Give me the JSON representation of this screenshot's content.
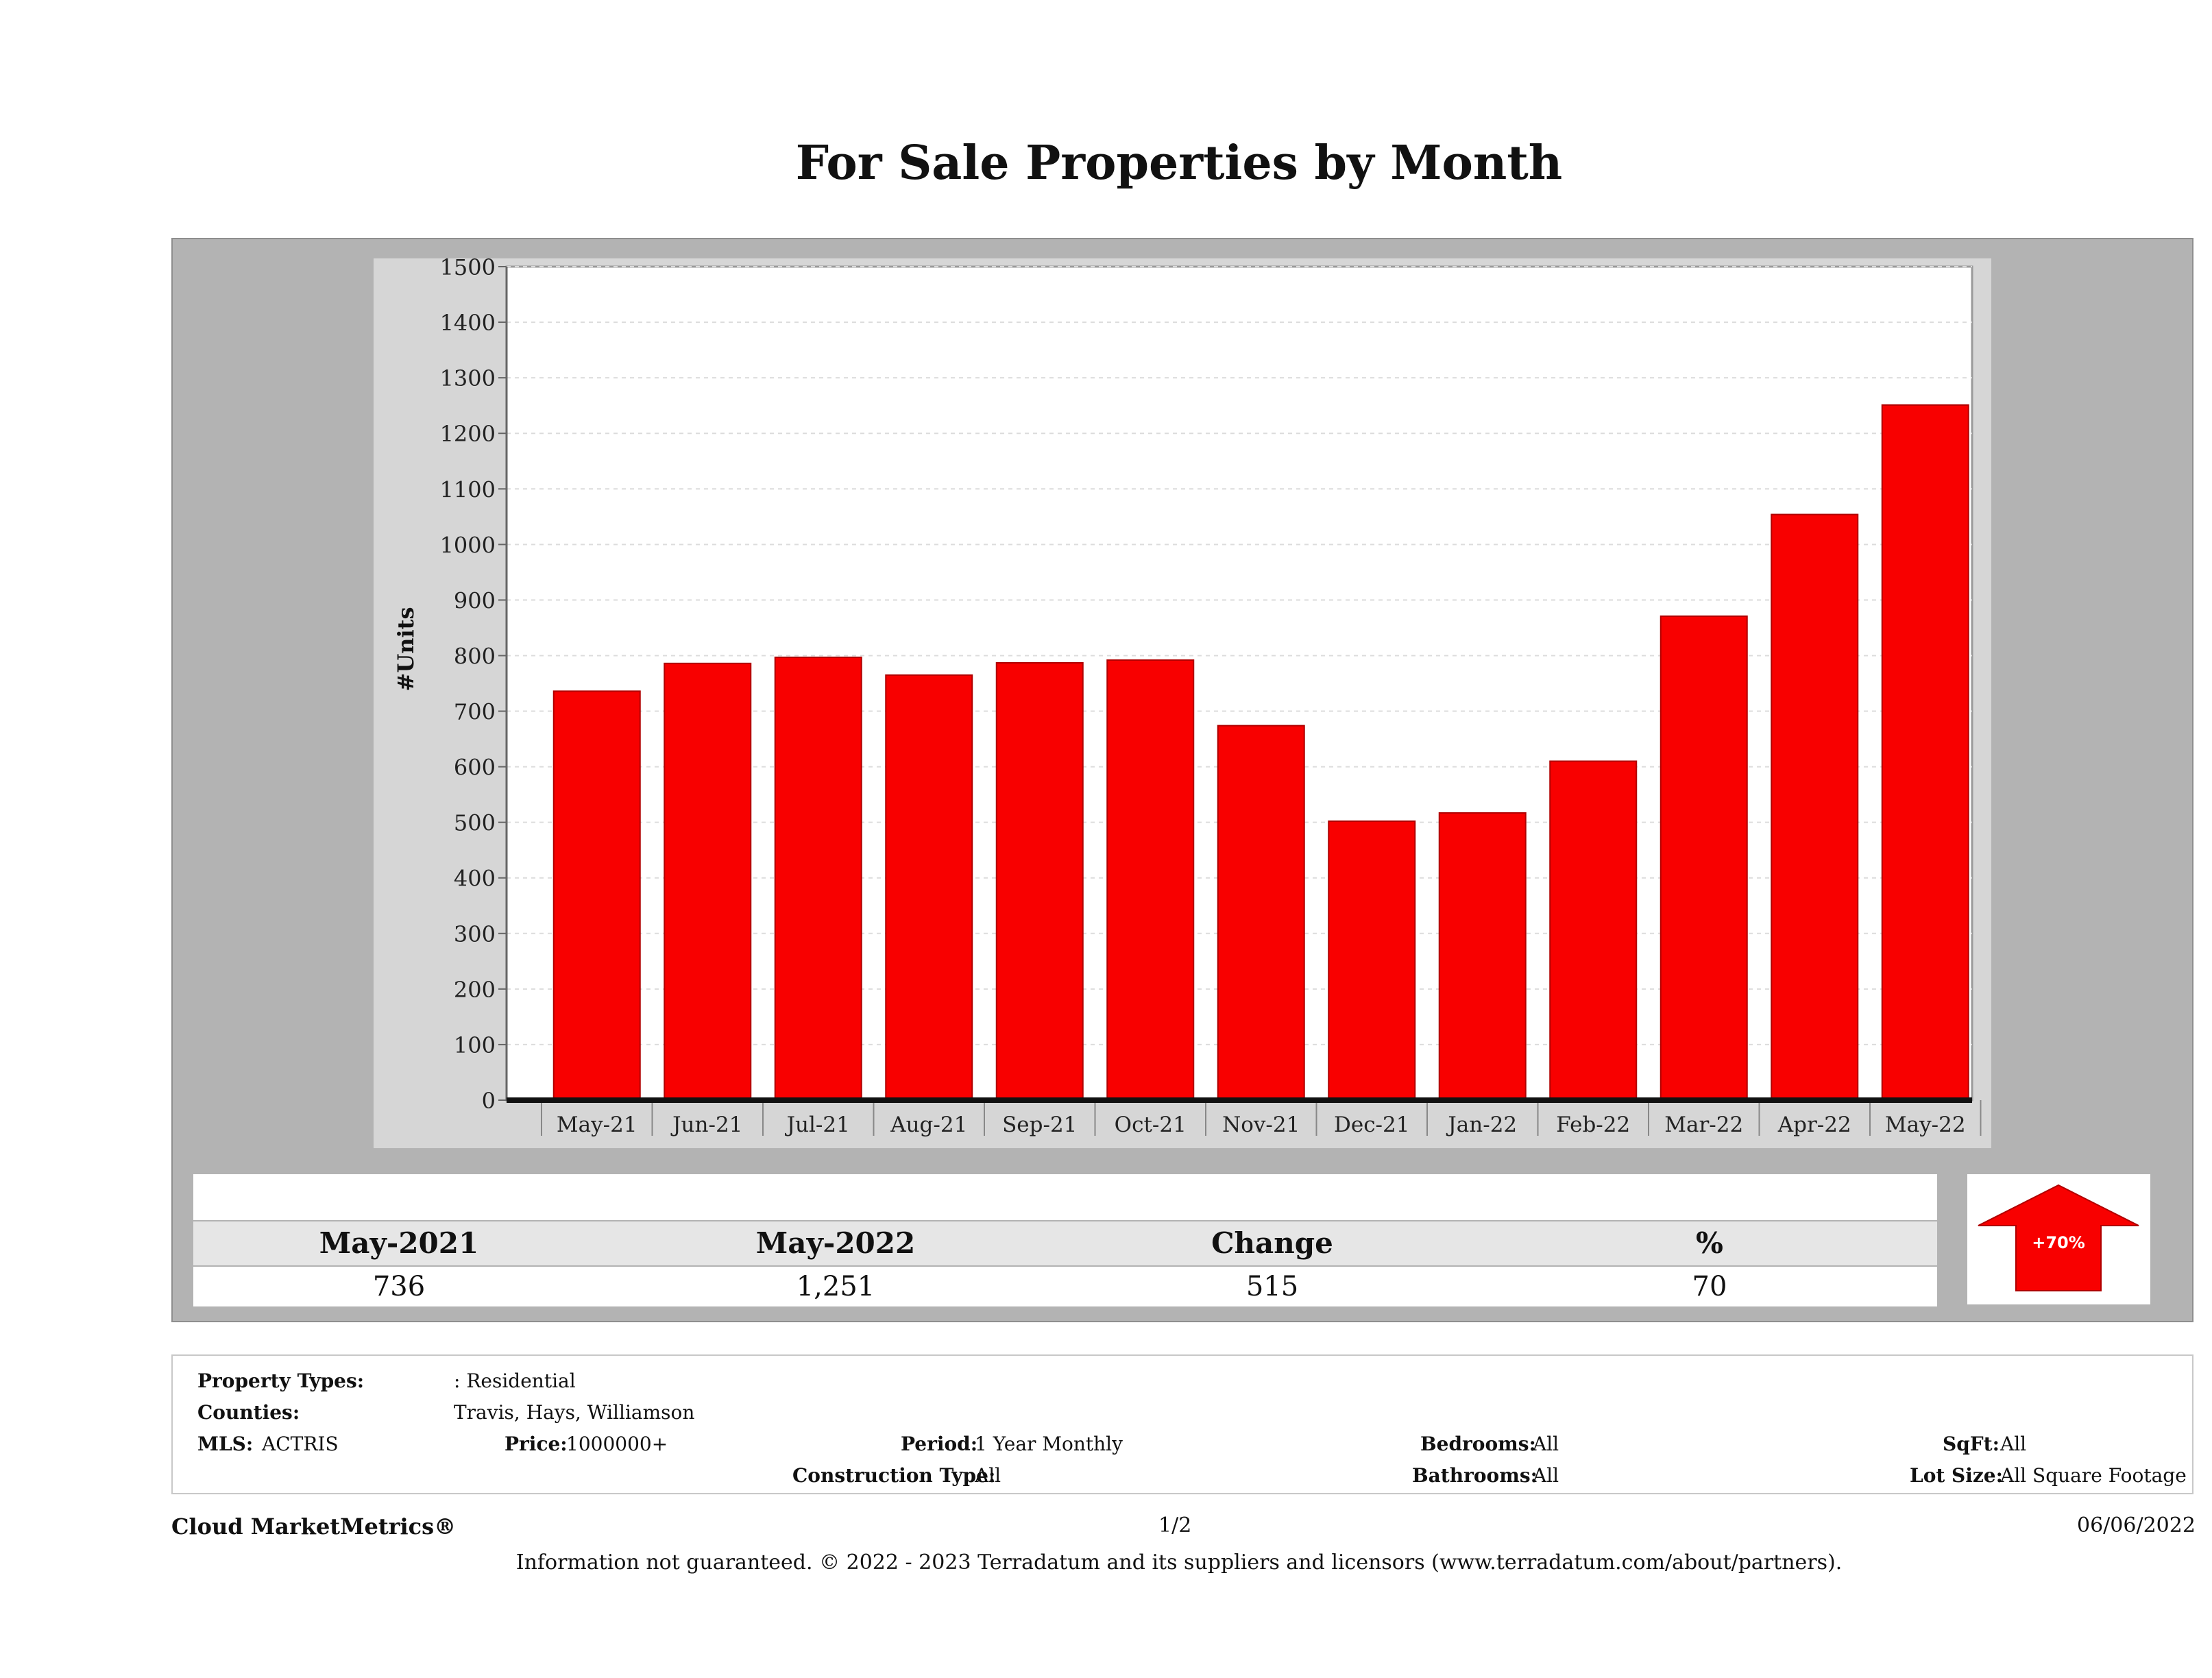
{
  "page": {
    "title": "For Sale Properties by Month"
  },
  "chart_data": {
    "type": "bar",
    "title": "For Sale Properties by Month",
    "ylabel": "#Units",
    "xlabel": "",
    "ylim": [
      0,
      1500
    ],
    "yticks": [
      0,
      100,
      200,
      300,
      400,
      500,
      600,
      700,
      800,
      900,
      1000,
      1100,
      1200,
      1300,
      1400,
      1500
    ],
    "grid": true,
    "categories": [
      "May-21",
      "Jun-21",
      "Jul-21",
      "Aug-21",
      "Sep-21",
      "Oct-21",
      "Nov-21",
      "Dec-21",
      "Jan-22",
      "Feb-22",
      "Mar-22",
      "Apr-22",
      "May-22"
    ],
    "values": [
      736,
      786,
      797,
      765,
      787,
      792,
      674,
      502,
      517,
      610,
      871,
      1054,
      1251
    ],
    "bar_color": "#f80000"
  },
  "summary": {
    "headers": [
      "May-2021",
      "May-2022",
      "Change",
      "%"
    ],
    "values": [
      "736",
      "1,251",
      "515",
      "70"
    ],
    "badge": "+70%",
    "arrow_color": "#f80000"
  },
  "criteria": {
    "property_types_label": "Property Types:",
    "property_types_value": ": Residential",
    "counties_label": "Counties:",
    "counties_value": "Travis, Hays, Williamson",
    "mls_label": "MLS:",
    "mls_value": "ACTRIS",
    "price_label": "Price:",
    "price_value": "1000000+",
    "period_label": "Period:",
    "period_value": "1 Year Monthly",
    "construction_label": "Construction Type:",
    "construction_value": "All",
    "bedrooms_label": "Bedrooms:",
    "bedrooms_value": "All",
    "bathrooms_label": "Bathrooms:",
    "bathrooms_value": "All",
    "sqft_label": "SqFt:",
    "sqft_value": "All",
    "lotsize_label": "Lot Size:",
    "lotsize_value": "All Square Footage"
  },
  "footer": {
    "brand": "Cloud MarketMetrics®",
    "page": "1/2",
    "date": "06/06/2022",
    "note": "Information not guaranteed. © 2022 - 2023 Terradatum and its suppliers and licensors (www.terradatum.com/about/partners)."
  }
}
